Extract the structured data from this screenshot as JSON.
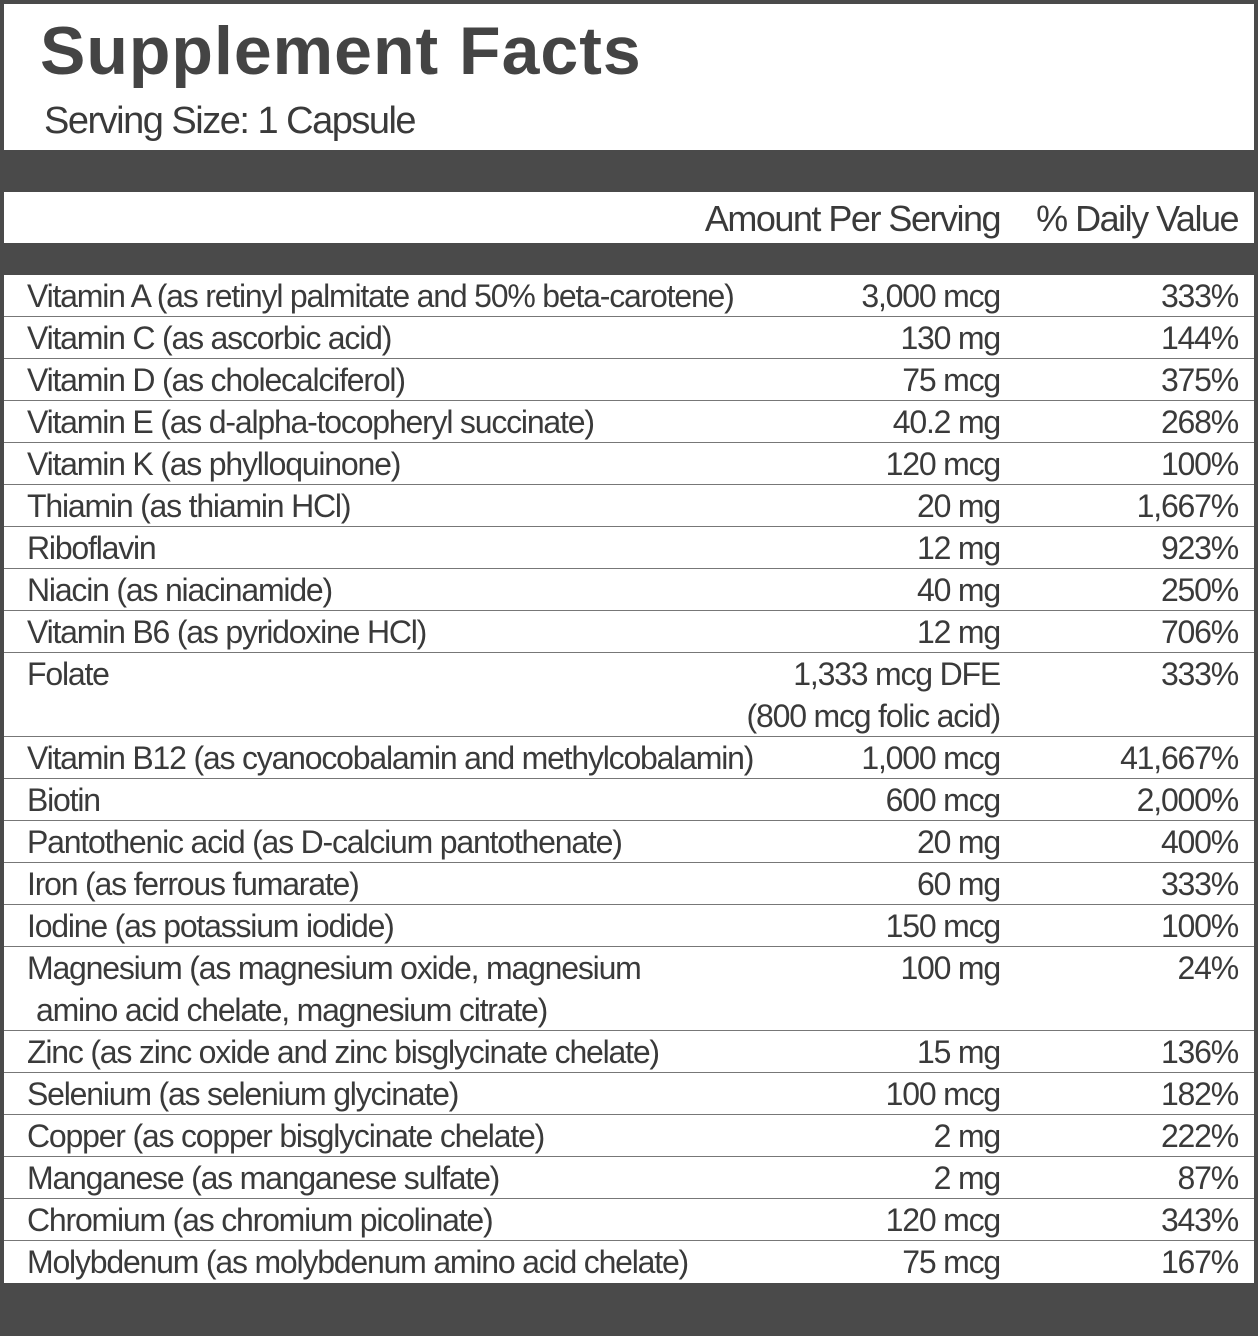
{
  "title": "Supplement Facts",
  "serving_size": "Serving Size: 1 Capsule",
  "columns": {
    "amount": "Amount Per Serving",
    "daily_value": "% Daily Value"
  },
  "rows": [
    {
      "name": [
        "Vitamin A (as retinyl palmitate and 50% beta-carotene)"
      ],
      "amount": [
        "3,000 mcg"
      ],
      "daily_value": "333%"
    },
    {
      "name": [
        "Vitamin C (as ascorbic acid)"
      ],
      "amount": [
        "130 mg"
      ],
      "daily_value": "144%"
    },
    {
      "name": [
        "Vitamin D (as cholecalciferol)"
      ],
      "amount": [
        "75 mcg"
      ],
      "daily_value": "375%"
    },
    {
      "name": [
        "Vitamin E (as d-alpha-tocopheryl succinate)"
      ],
      "amount": [
        "40.2 mg"
      ],
      "daily_value": "268%"
    },
    {
      "name": [
        "Vitamin K (as phylloquinone)"
      ],
      "amount": [
        "120 mcg"
      ],
      "daily_value": "100%"
    },
    {
      "name": [
        "Thiamin (as thiamin HCl)"
      ],
      "amount": [
        "20 mg"
      ],
      "daily_value": "1,667%"
    },
    {
      "name": [
        "Riboflavin"
      ],
      "amount": [
        "12 mg"
      ],
      "daily_value": "923%"
    },
    {
      "name": [
        "Niacin (as niacinamide)"
      ],
      "amount": [
        "40 mg"
      ],
      "daily_value": "250%"
    },
    {
      "name": [
        "Vitamin B6 (as pyridoxine HCl)"
      ],
      "amount": [
        "12 mg"
      ],
      "daily_value": "706%"
    },
    {
      "name": [
        "Folate"
      ],
      "amount": [
        "1,333 mcg DFE",
        "(800 mcg folic acid)"
      ],
      "daily_value": "333%"
    },
    {
      "name": [
        "Vitamin B12 (as cyanocobalamin and methylcobalamin)"
      ],
      "amount": [
        "1,000 mcg"
      ],
      "daily_value": "41,667%"
    },
    {
      "name": [
        "Biotin"
      ],
      "amount": [
        "600 mcg"
      ],
      "daily_value": "2,000%"
    },
    {
      "name": [
        "Pantothenic acid (as D-calcium pantothenate)"
      ],
      "amount": [
        "20 mg"
      ],
      "daily_value": "400%"
    },
    {
      "name": [
        "Iron (as ferrous fumarate)"
      ],
      "amount": [
        "60 mg"
      ],
      "daily_value": "333%"
    },
    {
      "name": [
        "Iodine (as potassium iodide)"
      ],
      "amount": [
        "150 mcg"
      ],
      "daily_value": "100%"
    },
    {
      "name": [
        "Magnesium (as magnesium oxide, magnesium",
        "amino acid chelate, magnesium citrate)"
      ],
      "amount": [
        "100 mg"
      ],
      "daily_value": "24%"
    },
    {
      "name": [
        "Zinc (as zinc oxide and zinc bisglycinate chelate)"
      ],
      "amount": [
        "15 mg"
      ],
      "daily_value": "136%"
    },
    {
      "name": [
        "Selenium (as selenium glycinate)"
      ],
      "amount": [
        "100 mcg"
      ],
      "daily_value": "182%"
    },
    {
      "name": [
        "Copper (as copper bisglycinate chelate)"
      ],
      "amount": [
        "2 mg"
      ],
      "daily_value": "222%"
    },
    {
      "name": [
        "Manganese (as manganese sulfate)"
      ],
      "amount": [
        "2 mg"
      ],
      "daily_value": "87%"
    },
    {
      "name": [
        "Chromium (as chromium picolinate)"
      ],
      "amount": [
        "120 mcg"
      ],
      "daily_value": "343%"
    },
    {
      "name": [
        "Molybdenum (as molybdenum amino acid chelate)"
      ],
      "amount": [
        "75 mcg"
      ],
      "daily_value": "167%"
    }
  ]
}
